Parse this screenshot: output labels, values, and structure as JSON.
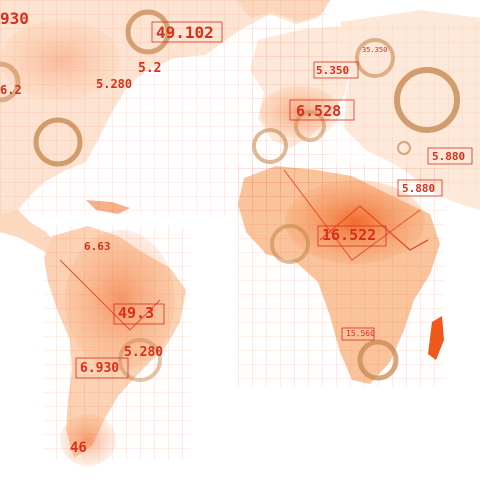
{
  "palette": {
    "land_light": "#fde9da",
    "land_mid": "#f7b07a",
    "land_hot": "#ef5a1a",
    "grid_line": "#e8502a",
    "label_text": "#d8301a",
    "ring": "#c78a52",
    "background": "#ffffff"
  },
  "labels": {
    "north_america_top": "49.102",
    "north_america_left": "5.2",
    "north_america_right": "5.280",
    "north_america_mid": "6.2",
    "europe_main": "6.528",
    "europe_small": "5.350",
    "europe_mini": "35.350",
    "asia_far": "5.880",
    "asia_mid": "5.880",
    "africa_main": "16.522",
    "africa_box": "15.560",
    "south_america_top": "6.63",
    "south_america_mid": "49.3",
    "south_america_right": "5.280",
    "south_america_left": "6.930",
    "south_america_bottom": "46",
    "north_america_far_left": "930"
  }
}
